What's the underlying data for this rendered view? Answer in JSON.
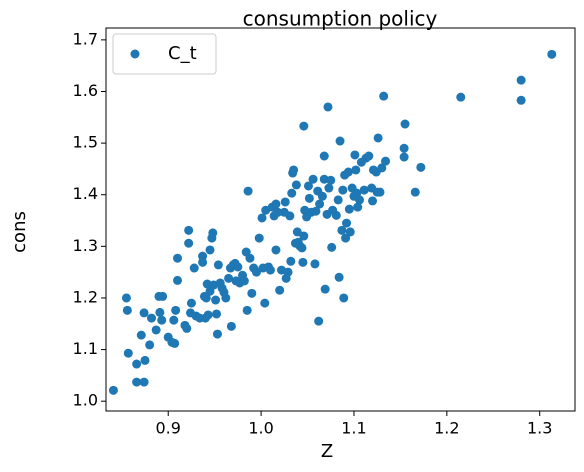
{
  "chart_data": {
    "type": "scatter",
    "title": "consumption policy",
    "xlabel": "Z",
    "ylabel": "cons",
    "legend": "upper left",
    "grid": false,
    "xlim": [
      0.833,
      1.338
    ],
    "ylim": [
      0.981,
      1.723
    ],
    "xticks": [
      0.9,
      {
        "value": 1,
        "label": "1.0"
      },
      1.1,
      1.2,
      1.3
    ],
    "yticks": [
      {
        "value": 1,
        "label": "1.0"
      },
      1.1,
      1.2,
      1.3,
      1.4,
      1.5,
      1.6,
      1.7
    ],
    "x": [
      0.841,
      0.866,
      0.857,
      0.855,
      0.856,
      0.866,
      0.874,
      0.875,
      0.871,
      0.874,
      0.88,
      0.882,
      0.887,
      0.89,
      0.894,
      0.891,
      0.893,
      0.9,
      0.904,
      0.907,
      0.906,
      0.908,
      0.91,
      0.91,
      0.918,
      0.92,
      0.922,
      0.922,
      0.924,
      0.925,
      0.928,
      0.93,
      0.934,
      0.937,
      0.937,
      0.939,
      0.94,
      0.941,
      0.942,
      0.943,
      0.945,
      0.945,
      0.947,
      0.948,
      0.949,
      0.951,
      0.952,
      0.953,
      0.954,
      0.956,
      0.958,
      0.96,
      0.962,
      0.965,
      0.967,
      0.968,
      0.97,
      0.972,
      0.973,
      0.975,
      0.977,
      0.98,
      0.982,
      0.984,
      0.985,
      0.986,
      0.988,
      0.99,
      0.992,
      0.995,
      0.998,
      1.001,
      1.002,
      1.004,
      1.005,
      1.008,
      1.01,
      1.012,
      1.014,
      1.016,
      1.016,
      1.018,
      1.02,
      1.022,
      1.025,
      1.026,
      1.027,
      1.029,
      1.031,
      1.032,
      1.033,
      1.034,
      1.035,
      1.037,
      1.038,
      1.039,
      1.04,
      1.042,
      1.044,
      1.045,
      1.046,
      1.046,
      1.047,
      1.049,
      1.051,
      1.052,
      1.054,
      1.056,
      1.058,
      1.059,
      1.061,
      1.062,
      1.063,
      1.066,
      1.068,
      1.068,
      1.069,
      1.071,
      1.072,
      1.073,
      1.075,
      1.076,
      1.077,
      1.081,
      1.083,
      1.084,
      1.085,
      1.087,
      1.088,
      1.089,
      1.09,
      1.091,
      1.092,
      1.094,
      1.095,
      1.096,
      1.098,
      1.1,
      1.101,
      1.102,
      1.103,
      1.104,
      1.106,
      1.108,
      1.111,
      1.113,
      1.116,
      1.119,
      1.12,
      1.121,
      1.124,
      1.125,
      1.126,
      1.128,
      1.13,
      1.132,
      1.134,
      1.154,
      1.154,
      1.155,
      1.166,
      1.172,
      1.215,
      1.28,
      1.28,
      1.313
    ],
    "series": [
      {
        "name": "C_t",
        "color": "#1f77b4",
        "values": [
          1.021,
          1.072,
          1.093,
          1.2,
          1.176,
          1.037,
          1.037,
          1.079,
          1.128,
          1.171,
          1.109,
          1.161,
          1.138,
          1.203,
          1.203,
          1.172,
          1.157,
          1.124,
          1.114,
          1.112,
          1.157,
          1.176,
          1.234,
          1.277,
          1.147,
          1.141,
          1.306,
          1.331,
          1.171,
          1.19,
          1.258,
          1.165,
          1.161,
          1.269,
          1.281,
          1.203,
          1.161,
          1.2,
          1.227,
          1.167,
          1.213,
          1.293,
          1.316,
          1.326,
          1.225,
          1.196,
          1.169,
          1.13,
          1.264,
          1.229,
          1.219,
          1.211,
          1.2,
          1.238,
          1.258,
          1.145,
          1.264,
          1.267,
          1.233,
          1.26,
          1.229,
          1.244,
          1.233,
          1.289,
          1.176,
          1.407,
          1.277,
          1.209,
          1.258,
          1.25,
          1.316,
          1.355,
          1.258,
          1.19,
          1.37,
          1.26,
          1.254,
          1.376,
          1.359,
          1.382,
          1.293,
          1.366,
          1.215,
          1.254,
          1.366,
          1.386,
          1.238,
          1.25,
          1.359,
          1.271,
          1.403,
          1.442,
          1.448,
          1.306,
          1.419,
          1.328,
          1.308,
          1.3,
          1.297,
          1.269,
          1.32,
          1.533,
          1.37,
          1.357,
          1.417,
          1.393,
          1.366,
          1.43,
          1.266,
          1.368,
          1.407,
          1.155,
          1.382,
          1.397,
          1.43,
          1.475,
          1.217,
          1.362,
          1.57,
          1.413,
          1.428,
          1.298,
          1.37,
          1.36,
          1.39,
          1.24,
          1.504,
          1.331,
          1.409,
          1.2,
          1.438,
          1.316,
          1.345,
          1.444,
          1.372,
          1.328,
          1.413,
          1.397,
          1.477,
          1.448,
          1.403,
          1.376,
          1.39,
          1.463,
          1.409,
          1.471,
          1.475,
          1.413,
          1.388,
          1.448,
          1.444,
          1.405,
          1.51,
          1.405,
          1.452,
          1.591,
          1.465,
          1.473,
          1.49,
          1.537,
          1.405,
          1.453,
          1.589,
          1.622,
          1.583,
          1.672
        ]
      }
    ]
  }
}
